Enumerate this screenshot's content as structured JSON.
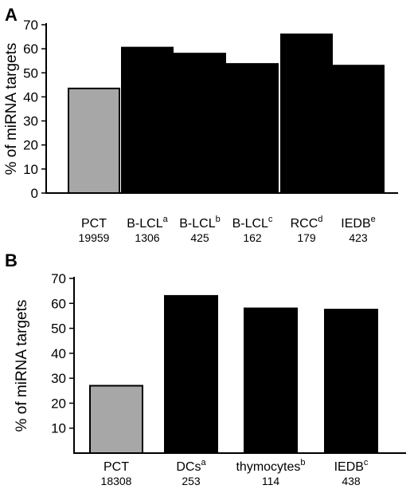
{
  "chart_data": [
    {
      "panel": "A",
      "type": "bar",
      "ylabel": "% of miRNA targets",
      "ylim": [
        0,
        70
      ],
      "yticks": [
        0,
        10,
        20,
        30,
        40,
        50,
        60,
        70
      ],
      "categories": [
        {
          "label": "PCT",
          "sup": "",
          "count": "19959"
        },
        {
          "label": "B-LCL",
          "sup": "a",
          "count": "1306"
        },
        {
          "label": "B-LCL",
          "sup": "b",
          "count": "425"
        },
        {
          "label": "B-LCL",
          "sup": "c",
          "count": "162"
        },
        {
          "label": "RCC",
          "sup": "d",
          "count": "179"
        },
        {
          "label": "IEDB",
          "sup": "e",
          "count": "423"
        }
      ],
      "values": [
        43.5,
        60.5,
        58,
        53.7,
        66,
        53
      ],
      "colors": [
        "#a7a7a7",
        "#000000",
        "#000000",
        "#000000",
        "#000000",
        "#000000"
      ]
    },
    {
      "panel": "B",
      "type": "bar",
      "ylabel": "% of miRNA targets",
      "ylim": [
        0,
        70
      ],
      "yticks": [
        10,
        20,
        30,
        40,
        50,
        60,
        70
      ],
      "categories": [
        {
          "label": "PCT",
          "sup": "",
          "count": "18308"
        },
        {
          "label": "DCs",
          "sup": "a",
          "count": "253"
        },
        {
          "label": "thymocytes",
          "sup": "b",
          "count": "114"
        },
        {
          "label": "IEDB",
          "sup": "c",
          "count": "438"
        }
      ],
      "values": [
        27,
        63,
        58,
        57.5
      ],
      "colors": [
        "#a7a7a7",
        "#000000",
        "#000000",
        "#000000"
      ]
    }
  ]
}
